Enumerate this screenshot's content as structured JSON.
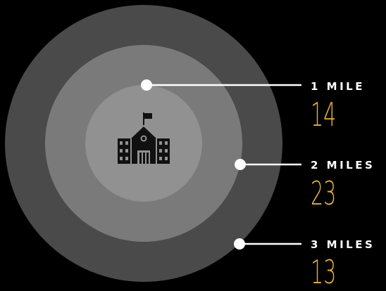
{
  "colors": {
    "background": "#000000",
    "ring_outer": "#4a4a4b",
    "ring_middle": "#7a7a7b",
    "ring_inner": "#919192",
    "icon": "#111111",
    "leader": "#ffffff",
    "count": "#e8b22c"
  },
  "center_icon": "school-building-icon",
  "rings": [
    {
      "label": "1 MILE",
      "count": "14"
    },
    {
      "label": "2 MILES",
      "count": "23"
    },
    {
      "label": "3 MILES",
      "count": "13"
    }
  ]
}
